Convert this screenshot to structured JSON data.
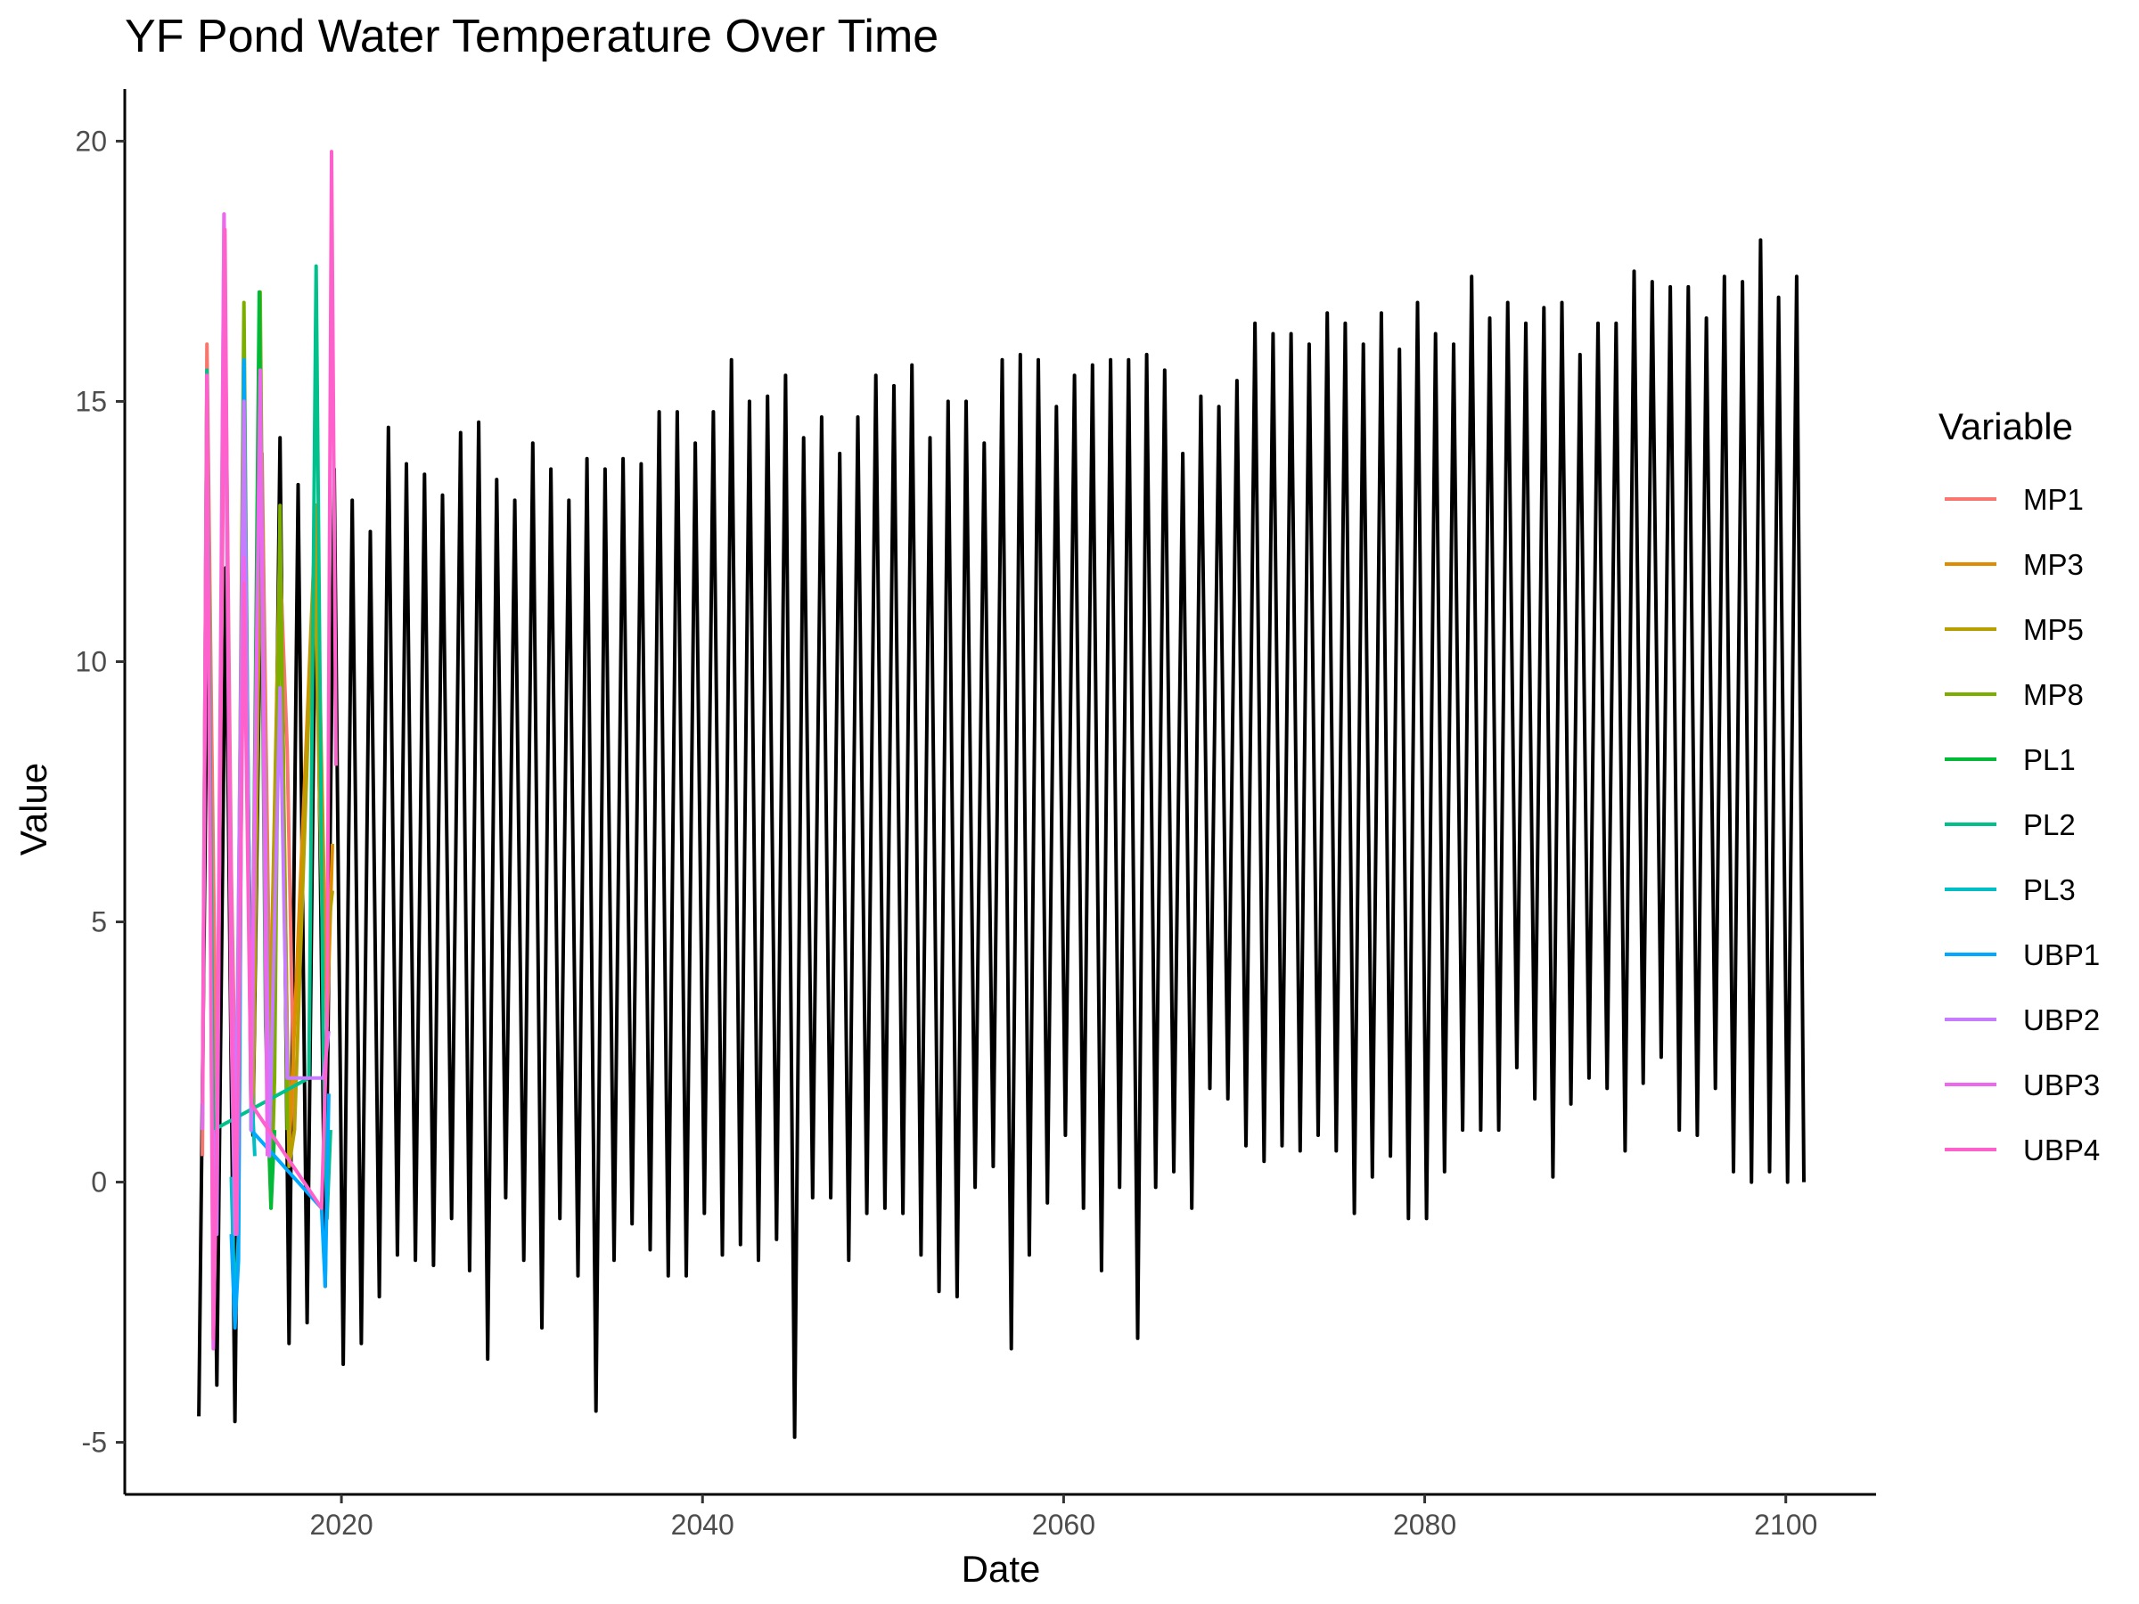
{
  "chart_data": {
    "type": "line",
    "title": "YF Pond Water Temperature Over Time",
    "xlabel": "Date",
    "ylabel": "Value",
    "xlim": [
      2008,
      2105
    ],
    "ylim": [
      -6,
      21
    ],
    "x_ticks": [
      2020,
      2040,
      2060,
      2080,
      2100
    ],
    "y_ticks": [
      -5,
      0,
      5,
      10,
      15,
      20
    ],
    "grid": false,
    "legend": {
      "title": "Variable",
      "position": "right",
      "entries": [
        "MP1",
        "MP3",
        "MP5",
        "MP8",
        "PL1",
        "PL2",
        "PL3",
        "UBP1",
        "UBP2",
        "UBP3",
        "UBP4"
      ]
    },
    "series": [
      {
        "color": "#000000",
        "summer_peaks": [
          [
            2012.6,
            11.3
          ],
          [
            2013.6,
            11.8
          ],
          [
            2014.6,
            13.0
          ],
          [
            2015.6,
            13.5
          ],
          [
            2016.6,
            14.3
          ],
          [
            2017.6,
            13.4
          ],
          [
            2018.6,
            13.0
          ],
          [
            2019.6,
            13.7
          ],
          [
            2020.6,
            13.1
          ],
          [
            2021.6,
            12.5
          ],
          [
            2022.6,
            14.5
          ],
          [
            2023.6,
            13.8
          ],
          [
            2024.6,
            13.6
          ],
          [
            2025.6,
            13.2
          ],
          [
            2026.6,
            14.4
          ],
          [
            2027.6,
            14.6
          ],
          [
            2028.6,
            13.5
          ],
          [
            2029.6,
            13.1
          ],
          [
            2030.6,
            14.2
          ],
          [
            2031.6,
            13.7
          ],
          [
            2032.6,
            13.1
          ],
          [
            2033.6,
            13.9
          ],
          [
            2034.6,
            13.7
          ],
          [
            2035.6,
            13.9
          ],
          [
            2036.6,
            13.8
          ],
          [
            2037.6,
            14.8
          ],
          [
            2038.6,
            14.8
          ],
          [
            2039.6,
            14.2
          ],
          [
            2040.6,
            14.8
          ],
          [
            2041.6,
            15.8
          ],
          [
            2042.6,
            15.0
          ],
          [
            2043.6,
            15.1
          ],
          [
            2044.6,
            15.5
          ],
          [
            2045.6,
            14.3
          ],
          [
            2046.6,
            14.7
          ],
          [
            2047.6,
            14.0
          ],
          [
            2048.6,
            14.7
          ],
          [
            2049.6,
            15.5
          ],
          [
            2050.6,
            15.3
          ],
          [
            2051.6,
            15.7
          ],
          [
            2052.6,
            14.3
          ],
          [
            2053.6,
            15.0
          ],
          [
            2054.6,
            15.0
          ],
          [
            2055.6,
            14.2
          ],
          [
            2056.6,
            15.8
          ],
          [
            2057.6,
            15.9
          ],
          [
            2058.6,
            15.8
          ],
          [
            2059.6,
            14.9
          ],
          [
            2060.6,
            15.5
          ],
          [
            2061.6,
            15.7
          ],
          [
            2062.6,
            15.8
          ],
          [
            2063.6,
            15.8
          ],
          [
            2064.6,
            15.9
          ],
          [
            2065.6,
            15.6
          ],
          [
            2066.6,
            14.0
          ],
          [
            2067.6,
            15.1
          ],
          [
            2068.6,
            14.9
          ],
          [
            2069.6,
            15.4
          ],
          [
            2070.6,
            16.5
          ],
          [
            2071.6,
            16.3
          ],
          [
            2072.6,
            16.3
          ],
          [
            2073.6,
            16.1
          ],
          [
            2074.6,
            16.7
          ],
          [
            2075.6,
            16.5
          ],
          [
            2076.6,
            16.1
          ],
          [
            2077.6,
            16.7
          ],
          [
            2078.6,
            16.0
          ],
          [
            2079.6,
            16.9
          ],
          [
            2080.6,
            16.3
          ],
          [
            2081.6,
            16.1
          ],
          [
            2082.6,
            17.4
          ],
          [
            2083.6,
            16.6
          ],
          [
            2084.6,
            16.9
          ],
          [
            2085.6,
            16.5
          ],
          [
            2086.6,
            16.8
          ],
          [
            2087.6,
            16.9
          ],
          [
            2088.6,
            15.9
          ],
          [
            2089.6,
            16.5
          ],
          [
            2090.6,
            16.5
          ],
          [
            2091.6,
            17.5
          ],
          [
            2092.6,
            17.3
          ],
          [
            2093.6,
            17.2
          ],
          [
            2094.6,
            17.2
          ],
          [
            2095.6,
            16.6
          ],
          [
            2096.6,
            17.4
          ],
          [
            2097.6,
            17.3
          ],
          [
            2098.6,
            18.1
          ],
          [
            2099.6,
            17.0
          ],
          [
            2100.6,
            17.4
          ]
        ],
        "winter_minima": [
          [
            2012.1,
            -4.5
          ],
          [
            2013.1,
            -3.9
          ],
          [
            2014.1,
            -4.6
          ],
          [
            2015.1,
            0.9
          ],
          [
            2016.1,
            -0.4
          ],
          [
            2017.1,
            -3.1
          ],
          [
            2018.1,
            -2.7
          ],
          [
            2019.1,
            -2.0
          ],
          [
            2020.1,
            -3.5
          ],
          [
            2021.1,
            -3.1
          ],
          [
            2022.1,
            -2.2
          ],
          [
            2023.1,
            -1.4
          ],
          [
            2024.1,
            -1.5
          ],
          [
            2025.1,
            -1.6
          ],
          [
            2026.1,
            -0.7
          ],
          [
            2027.1,
            -1.7
          ],
          [
            2028.1,
            -3.4
          ],
          [
            2029.1,
            -0.3
          ],
          [
            2030.1,
            -1.5
          ],
          [
            2031.1,
            -2.8
          ],
          [
            2032.1,
            -0.7
          ],
          [
            2033.1,
            -1.8
          ],
          [
            2034.1,
            -4.4
          ],
          [
            2035.1,
            -1.5
          ],
          [
            2036.1,
            -0.8
          ],
          [
            2037.1,
            -1.3
          ],
          [
            2038.1,
            -1.8
          ],
          [
            2039.1,
            -1.8
          ],
          [
            2040.1,
            -0.6
          ],
          [
            2041.1,
            -1.4
          ],
          [
            2042.1,
            -1.2
          ],
          [
            2043.1,
            -1.5
          ],
          [
            2044.1,
            -1.1
          ],
          [
            2045.1,
            -4.9
          ],
          [
            2046.1,
            -0.3
          ],
          [
            2047.1,
            -0.3
          ],
          [
            2048.1,
            -1.5
          ],
          [
            2049.1,
            -0.6
          ],
          [
            2050.1,
            -0.5
          ],
          [
            2051.1,
            -0.6
          ],
          [
            2052.1,
            -1.4
          ],
          [
            2053.1,
            -2.1
          ],
          [
            2054.1,
            -2.2
          ],
          [
            2055.1,
            -0.1
          ],
          [
            2056.1,
            0.3
          ],
          [
            2057.1,
            -3.2
          ],
          [
            2058.1,
            -1.4
          ],
          [
            2059.1,
            -0.4
          ],
          [
            2060.1,
            0.9
          ],
          [
            2061.1,
            -0.5
          ],
          [
            2062.1,
            -1.7
          ],
          [
            2063.1,
            -0.1
          ],
          [
            2064.1,
            -3.0
          ],
          [
            2065.1,
            -0.1
          ],
          [
            2066.1,
            0.2
          ],
          [
            2067.1,
            -0.5
          ],
          [
            2068.1,
            1.8
          ],
          [
            2069.1,
            1.6
          ],
          [
            2070.1,
            0.7
          ],
          [
            2071.1,
            0.4
          ],
          [
            2072.1,
            0.7
          ],
          [
            2073.1,
            0.6
          ],
          [
            2074.1,
            0.9
          ],
          [
            2075.1,
            0.6
          ],
          [
            2076.1,
            -0.6
          ],
          [
            2077.1,
            0.1
          ],
          [
            2078.1,
            0.5
          ],
          [
            2079.1,
            -0.7
          ],
          [
            2080.1,
            -0.7
          ],
          [
            2081.1,
            0.2
          ],
          [
            2082.1,
            1.0
          ],
          [
            2083.1,
            1.0
          ],
          [
            2084.1,
            1.0
          ],
          [
            2085.1,
            2.2
          ],
          [
            2086.1,
            1.6
          ],
          [
            2087.1,
            0.1
          ],
          [
            2088.1,
            1.5
          ],
          [
            2089.1,
            2.0
          ],
          [
            2090.1,
            1.8
          ],
          [
            2091.1,
            0.6
          ],
          [
            2092.1,
            1.9
          ],
          [
            2093.1,
            2.4
          ],
          [
            2094.1,
            1.0
          ],
          [
            2095.1,
            0.9
          ],
          [
            2096.1,
            1.8
          ],
          [
            2097.1,
            0.2
          ],
          [
            2098.1,
            0.0
          ],
          [
            2099.1,
            0.2
          ],
          [
            2100.1,
            0.0
          ]
        ],
        "end": [
          2101.0,
          0.0
        ]
      },
      {
        "name": "MP1",
        "color": "#F8766D",
        "points": [
          [
            2012.3,
            0.5
          ],
          [
            2012.55,
            16.1
          ],
          [
            2012.8,
            9.0
          ],
          [
            2013.1,
            1.0
          ],
          [
            2013.55,
            17.0
          ],
          [
            2013.9,
            6.0
          ],
          [
            2014.2,
            0.2
          ],
          [
            2014.6,
            15.0
          ],
          [
            2015.0,
            2.0
          ],
          [
            2015.6,
            14.0
          ],
          [
            2016.1,
            1.5
          ],
          [
            2016.6,
            12.0
          ],
          [
            2017.0,
            8.3
          ],
          [
            2017.4,
            1.0
          ]
        ]
      },
      {
        "name": "MP3",
        "color": "#DE8C00",
        "points": [
          [
            2015.1,
            1.0
          ],
          [
            2015.5,
            13.0
          ],
          [
            2016.0,
            2.0
          ],
          [
            2016.6,
            12.0
          ],
          [
            2017.1,
            0.5
          ],
          [
            2018.6,
            13.0
          ],
          [
            2019.2,
            3.0
          ],
          [
            2019.5,
            6.5
          ]
        ]
      },
      {
        "name": "MP5",
        "color": "#B79F00",
        "points": [
          [
            2015.1,
            1.2
          ],
          [
            2015.55,
            14.0
          ],
          [
            2016.0,
            2.0
          ],
          [
            2016.6,
            12.5
          ],
          [
            2017.1,
            0.3
          ],
          [
            2017.4,
            1.0
          ],
          [
            2018.5,
            12.2
          ],
          [
            2019.0,
            4.0
          ],
          [
            2019.5,
            5.6
          ]
        ]
      },
      {
        "name": "MP8",
        "color": "#7CAE00",
        "points": [
          [
            2014.2,
            1.0
          ],
          [
            2014.6,
            16.9
          ],
          [
            2015.0,
            1.0
          ],
          [
            2015.5,
            17.1
          ],
          [
            2015.9,
            1.5
          ],
          [
            2016.1,
            -0.5
          ],
          [
            2016.3,
            2.0
          ],
          [
            2016.6,
            13.0
          ],
          [
            2017.0,
            1.0
          ]
        ]
      },
      {
        "name": "PL1",
        "color": "#00BA38",
        "points": [
          [
            2015.0,
            1.0
          ],
          [
            2015.45,
            17.1
          ],
          [
            2015.8,
            3.0
          ],
          [
            2016.1,
            -0.5
          ],
          [
            2016.3,
            1.0
          ]
        ]
      },
      {
        "name": "PL2",
        "color": "#00C08B",
        "points": [
          [
            2012.3,
            1.0
          ],
          [
            2012.55,
            15.6
          ],
          [
            2012.9,
            1.0
          ],
          [
            2018.2,
            2.0
          ],
          [
            2018.6,
            17.6
          ],
          [
            2019.0,
            2.5
          ],
          [
            2019.2,
            -0.7
          ],
          [
            2019.4,
            1.0
          ]
        ]
      },
      {
        "name": "PL3",
        "color": "#00BFC4",
        "points": [
          [
            2013.9,
            0.1
          ],
          [
            2014.1,
            -2.5
          ],
          [
            2014.3,
            -1.0
          ],
          [
            2014.6,
            15.7
          ],
          [
            2015.0,
            2.0
          ],
          [
            2015.2,
            0.5
          ]
        ]
      },
      {
        "name": "UBP1",
        "color": "#00A9FF",
        "points": [
          [
            2013.9,
            -1.0
          ],
          [
            2014.1,
            -2.8
          ],
          [
            2014.3,
            -1.5
          ],
          [
            2014.6,
            15.8
          ],
          [
            2015.0,
            1.0
          ],
          [
            2018.9,
            -0.5
          ],
          [
            2019.1,
            -2.0
          ],
          [
            2019.3,
            1.7
          ]
        ]
      },
      {
        "name": "UBP2",
        "color": "#C77CFF",
        "points": [
          [
            2012.9,
            1.0
          ],
          [
            2013.1,
            -1.0
          ],
          [
            2013.5,
            18.6
          ],
          [
            2013.9,
            3.0
          ],
          [
            2014.1,
            -1.0
          ],
          [
            2014.6,
            15.0
          ],
          [
            2015.0,
            1.0
          ],
          [
            2015.5,
            15.5
          ],
          [
            2016.0,
            0.5
          ],
          [
            2016.6,
            9.5
          ],
          [
            2017.0,
            2.0
          ],
          [
            2019.0,
            2.0
          ],
          [
            2019.3,
            2.9
          ]
        ]
      },
      {
        "name": "UBP3",
        "color": "#ED68ED",
        "points": [
          [
            2012.3,
            1.0
          ],
          [
            2012.55,
            15.5
          ],
          [
            2012.9,
            -3.2
          ],
          [
            2013.1,
            1.0
          ],
          [
            2013.5,
            18.6
          ],
          [
            2013.9,
            5.0
          ],
          [
            2014.2,
            -1.0
          ],
          [
            2014.6,
            12.0
          ],
          [
            2015.0,
            2.0
          ],
          [
            2015.5,
            15.6
          ],
          [
            2015.9,
            0.5
          ]
        ]
      },
      {
        "name": "UBP4",
        "color": "#FF61CC",
        "points": [
          [
            2012.3,
            1.5
          ],
          [
            2012.55,
            15.5
          ],
          [
            2012.9,
            -3.0
          ],
          [
            2013.1,
            0.5
          ],
          [
            2013.55,
            18.3
          ],
          [
            2013.9,
            3.0
          ],
          [
            2014.2,
            -1.0
          ],
          [
            2014.6,
            11.5
          ],
          [
            2015.0,
            1.5
          ],
          [
            2018.9,
            -0.5
          ],
          [
            2019.2,
            3.0
          ],
          [
            2019.45,
            19.8
          ],
          [
            2019.7,
            8.0
          ]
        ]
      }
    ]
  }
}
